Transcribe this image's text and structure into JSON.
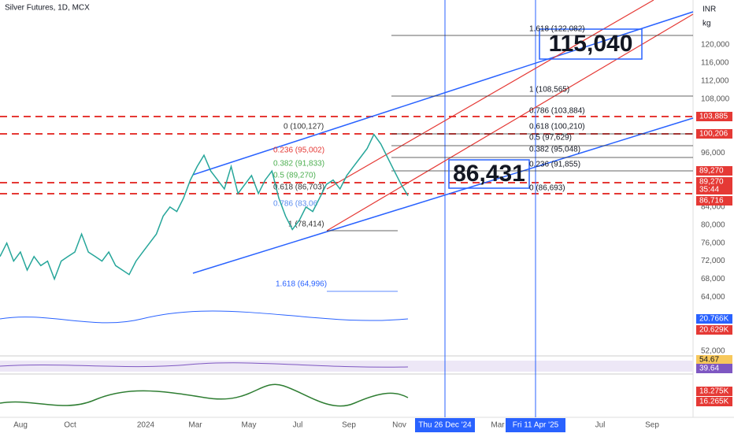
{
  "header": {
    "title": "Silver Futures, 1D, MCX"
  },
  "axis": {
    "currency": "INR",
    "unit": "kg",
    "ticks": [
      {
        "value": 120000,
        "label": "120,000"
      },
      {
        "value": 116000,
        "label": "116,000"
      },
      {
        "value": 112000,
        "label": "112,000"
      },
      {
        "value": 108000,
        "label": "108,000"
      },
      {
        "value": 96000,
        "label": "96,000"
      },
      {
        "value": 84000,
        "label": "84,000"
      },
      {
        "value": 80000,
        "label": "80,000"
      },
      {
        "value": 76000,
        "label": "76,000"
      },
      {
        "value": 72000,
        "label": "72,000"
      },
      {
        "value": 68000,
        "label": "68,000"
      },
      {
        "value": 64000,
        "label": "64,000"
      },
      {
        "value": 52000,
        "label": "52,000"
      }
    ]
  },
  "price_tags": [
    {
      "label": "103,885",
      "color": "#e53935"
    },
    {
      "label": "100,206",
      "color": "#e53935"
    },
    {
      "label": "89,270",
      "color": "#e53935"
    },
    {
      "label": "89,270",
      "color": "#e53935"
    },
    {
      "label": "35:44",
      "color": "#e53935"
    },
    {
      "label": "86,716",
      "color": "#e53935"
    },
    {
      "label": "20.766K",
      "color": "#2962ff"
    },
    {
      "label": "20.629K",
      "color": "#e53935"
    },
    {
      "label": "54.67",
      "color": "#f7c85b"
    },
    {
      "label": "39.64",
      "color": "#7e57c2"
    },
    {
      "label": "18.275K",
      "color": "#e53935"
    },
    {
      "label": "16.265K",
      "color": "#e53935"
    }
  ],
  "time_axis": [
    "Aug",
    "Oct",
    "2024",
    "Mar",
    "May",
    "Jul",
    "Sep",
    "Nov",
    "Thu 26 Dec '24",
    "Mar",
    "Fri 11 Apr '25",
    "Jul",
    "Sep"
  ],
  "fib_right": [
    "1.618 (122,082)",
    "1 (108,565)",
    "0.786 (103,884)",
    "0.618 (100,210)",
    "0.5 (97,629)",
    "0.382 (95,048)",
    "0.236 (91,855)",
    "0 (86,693)"
  ],
  "fib_left": [
    "0 (100,127)",
    "0.236 (95,002)",
    "0.382 (91,833)",
    "0.5 (89,270)",
    "0.618 (86,703)",
    "0.786 (83,06",
    "1 (78,414)",
    "1.618 (64,996)"
  ],
  "callouts": [
    "115,040",
    "86,431"
  ],
  "price": {
    "values": [
      73000,
      76000,
      72000,
      74000,
      70000,
      73000,
      71000,
      72000,
      68000,
      72000,
      73000,
      74000,
      78000,
      74000,
      73000,
      72000,
      74000,
      71000,
      70000,
      69000,
      72000,
      74000,
      76000,
      78000,
      82000,
      84000,
      83000,
      86000,
      90000,
      93000,
      95500,
      92000,
      90000,
      88000,
      93000,
      87000,
      89000,
      91000,
      87000,
      90000,
      92000,
      86000,
      82000,
      79000,
      81000,
      84000,
      83000,
      86000,
      89000,
      90000,
      88000,
      91000,
      93000,
      95000,
      97000,
      100127,
      98000,
      95000,
      92000,
      89000,
      86500
    ]
  }
}
